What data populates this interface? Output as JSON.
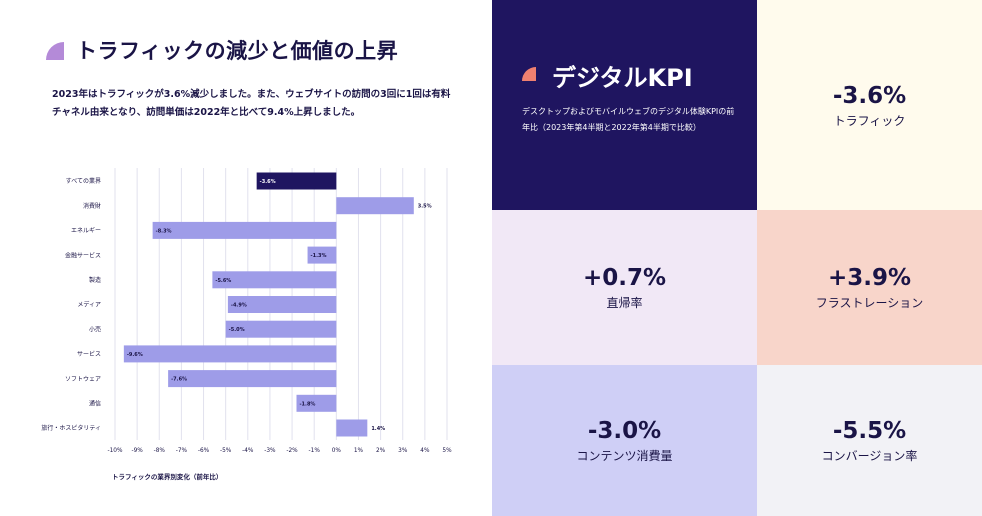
{
  "header": {
    "title": "トラフィックの減少と価値の上昇",
    "description": "2023年はトラフィックが3.6%減少しました。また、ウェブサイトの訪問の3回に1回は有料チャネル由来となり、訪問単価は2022年と比べて9.4%上昇しました。"
  },
  "chart_data": {
    "type": "bar",
    "orientation": "horizontal",
    "xlabel": "トラフィックの業界別変化（前年比）",
    "xlim": [
      -10,
      5
    ],
    "x_ticks": [
      "-10%",
      "-9%",
      "-8%",
      "-7%",
      "-6%",
      "-5%",
      "-4%",
      "-3%",
      "-2%",
      "-1%",
      "0%",
      "1%",
      "2%",
      "3%",
      "4%",
      "5%"
    ],
    "categories": [
      "すべての業界",
      "消費財",
      "エネルギー",
      "金融サービス",
      "製造",
      "メディア",
      "小売",
      "サービス",
      "ソフトウェア",
      "通信",
      "旅行・ホスピタリティ"
    ],
    "values": [
      -3.6,
      3.5,
      -8.3,
      -1.3,
      -5.6,
      -4.9,
      -5.0,
      -9.6,
      -7.6,
      -1.8,
      1.4
    ],
    "value_labels": [
      "-3.6%",
      "3.5%",
      "-8.3%",
      "-1.3%",
      "-5.6%",
      "-4.9%",
      "-5.0%",
      "-9.6%",
      "-7.6%",
      "-1.8%",
      "1.4%"
    ],
    "colors": {
      "highlight": "#1f1560",
      "bar": "#9e9ce8",
      "grid": "#e2e2ee"
    }
  },
  "kpi": {
    "hero": {
      "title": "デジタルKPI",
      "description": "デスクトップおよびモバイルウェブのデジタル体験KPIの前年比（2023年第4半期と2022年第4半期で比較）"
    },
    "traffic": {
      "value": "-3.6%",
      "label": "トラフィック",
      "color": "#fffbed"
    },
    "bounce": {
      "value": "+0.7%",
      "label": "直帰率",
      "color": "#f1e8f6"
    },
    "frustration": {
      "value": "+3.9%",
      "label": "フラストレーション",
      "color": "#f8d5ca"
    },
    "content": {
      "value": "-3.0%",
      "label": "コンテンツ消費量",
      "color": "#cfcff6"
    },
    "conversion": {
      "value": "-5.5%",
      "label": "コンバージョン率",
      "color": "#f2f2f6"
    }
  }
}
